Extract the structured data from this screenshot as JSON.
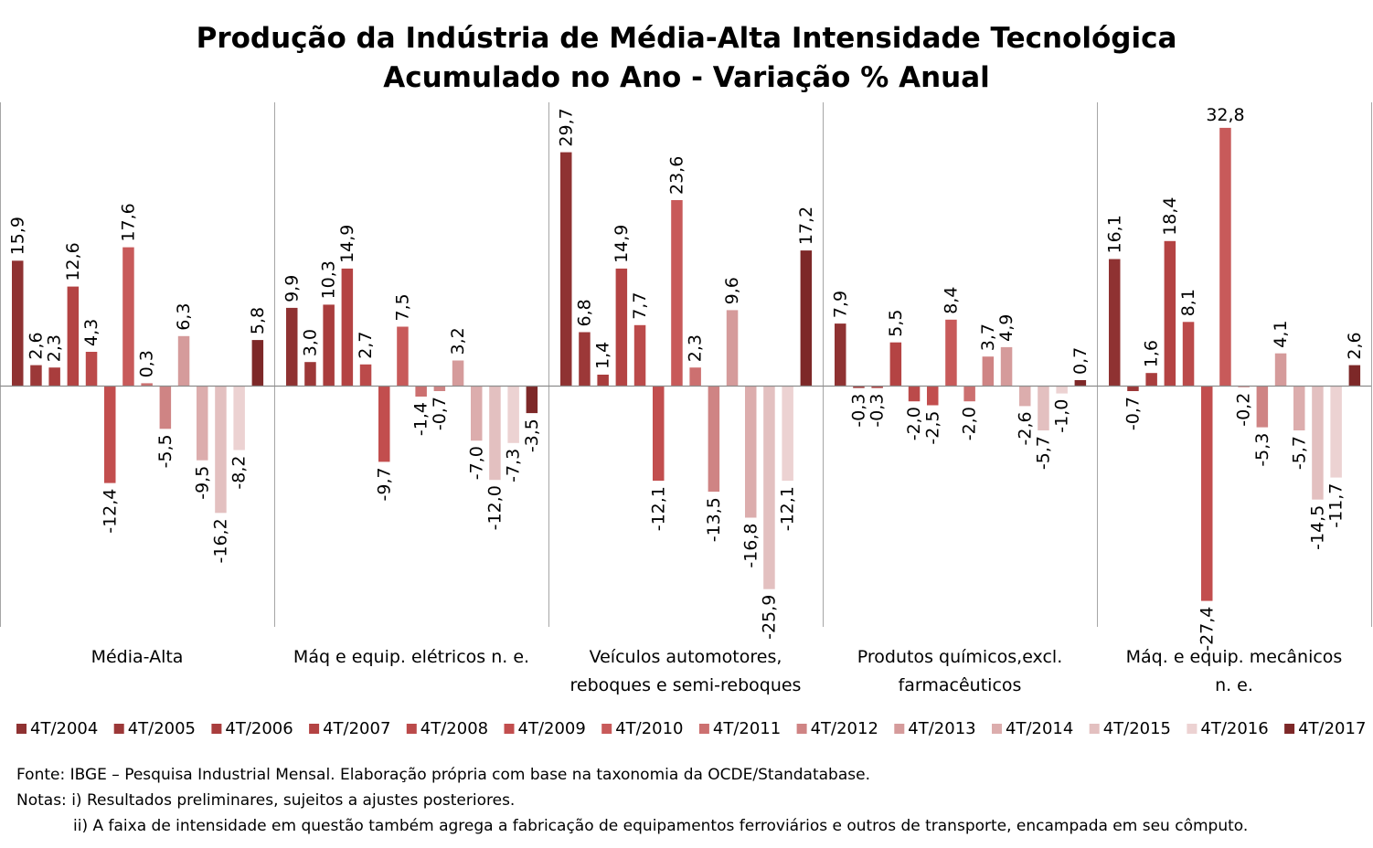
{
  "chart_data": {
    "type": "bar",
    "title": "Produção da Indústria de Média-Alta Intensidade Tecnológica",
    "subtitle": "Acumulado no Ano - Variação % Anual",
    "categories": [
      "Média-Alta",
      "Máq e equip. elétricos n. e.",
      "Veículos automotores, reboques e semi-reboques",
      "Produtos químicos,excl. farmacêuticos",
      "Máq. e equip. mecânicos n. e."
    ],
    "category_lines": [
      [
        "Média-Alta"
      ],
      [
        "Máq e equip. elétricos n. e."
      ],
      [
        "Veículos automotores,",
        "reboques e semi-reboques"
      ],
      [
        "Produtos químicos,excl.",
        "farmacêuticos"
      ],
      [
        "Máq. e equip. mecânicos",
        "n. e."
      ]
    ],
    "series": [
      {
        "name": "4T/2004",
        "color": "#8f3232",
        "values": [
          15.9,
          9.9,
          29.7,
          7.9,
          16.1
        ]
      },
      {
        "name": "4T/2005",
        "color": "#9c3838",
        "values": [
          2.6,
          3.0,
          6.8,
          -0.3,
          -0.7
        ]
      },
      {
        "name": "4T/2006",
        "color": "#a93d3d",
        "values": [
          2.3,
          10.3,
          1.4,
          -0.3,
          1.6
        ]
      },
      {
        "name": "4T/2007",
        "color": "#b44343",
        "values": [
          12.6,
          14.9,
          14.9,
          5.5,
          18.4
        ]
      },
      {
        "name": "4T/2008",
        "color": "#bb4a4a",
        "values": [
          4.3,
          2.7,
          7.7,
          -2.0,
          8.1
        ]
      },
      {
        "name": "4T/2009",
        "color": "#c24e4e",
        "values": [
          -12.4,
          -9.7,
          -12.1,
          -2.5,
          -27.4
        ]
      },
      {
        "name": "4T/2010",
        "color": "#c85a5a",
        "values": [
          17.6,
          7.5,
          23.6,
          8.4,
          32.8
        ]
      },
      {
        "name": "4T/2011",
        "color": "#cc7070",
        "values": [
          0.3,
          -1.4,
          2.3,
          -2.0,
          -0.2
        ]
      },
      {
        "name": "4T/2012",
        "color": "#cf8484",
        "values": [
          -5.5,
          -0.7,
          -13.5,
          3.7,
          -5.3
        ]
      },
      {
        "name": "4T/2013",
        "color": "#d59b9b",
        "values": [
          6.3,
          3.2,
          9.6,
          4.9,
          4.1
        ]
      },
      {
        "name": "4T/2014",
        "color": "#dcadad",
        "values": [
          -9.5,
          -7.0,
          -16.8,
          -2.6,
          -5.7
        ]
      },
      {
        "name": "4T/2015",
        "color": "#e3c0c0",
        "values": [
          -16.2,
          -12.0,
          -25.9,
          -5.7,
          -14.5
        ]
      },
      {
        "name": "4T/2016",
        "color": "#ecd2d2",
        "values": [
          -8.2,
          -7.3,
          -12.1,
          -1.0,
          -11.7
        ]
      },
      {
        "name": "4T/2017",
        "color": "#7d2828",
        "values": [
          5.8,
          -3.5,
          17.2,
          0.7,
          2.6
        ]
      }
    ],
    "ylim": [
      -31,
      37
    ],
    "grid": false,
    "legend_position": "bottom"
  },
  "notes": {
    "source": "Fonte: IBGE – Pesquisa Industrial Mensal. Elaboração própria com base na taxonomia da OCDE/Standatabase.",
    "note1": "Notas: i) Resultados preliminares, sujeitos a ajustes posteriores.",
    "note2": "ii) A faixa de intensidade em questão também agrega a fabricação de equipamentos ferroviários e outros de transporte, encampada em seu cômputo."
  }
}
